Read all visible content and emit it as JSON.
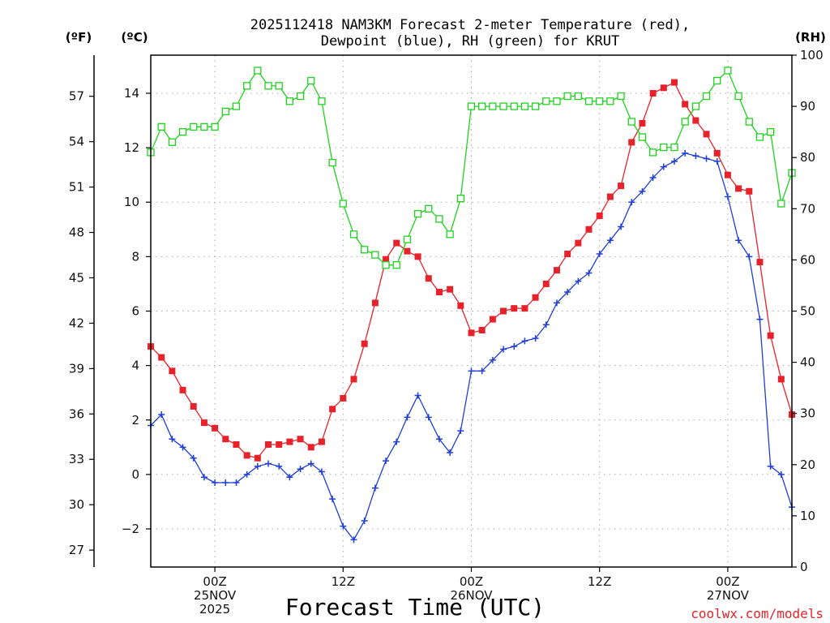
{
  "chart_data": {
    "type": "line",
    "title_line1": "2025112418 NAM3KM Forecast 2-meter Temperature (red),",
    "title_line2": "Dewpoint (blue), RH (green) for KRUT",
    "xlabel": "Forecast Time (UTC)",
    "credit": "coolwx.com/models",
    "left_units": [
      "(ºF)",
      "(ºC)"
    ],
    "right_unit": "(RH)",
    "x_unit": "forecast hours from 2025-11-24 18Z",
    "x_range": [
      0,
      60
    ],
    "celsius_range": [
      -3.4,
      15.4
    ],
    "celsius_ticks": [
      "−2",
      "0",
      "2",
      "4",
      "6",
      "8",
      "10",
      "12",
      "14"
    ],
    "celsius_tick_values": [
      -2,
      0,
      2,
      4,
      6,
      8,
      10,
      12,
      14
    ],
    "fahrenheit_ticks": [
      "27",
      "30",
      "33",
      "36",
      "39",
      "42",
      "45",
      "48",
      "51",
      "54",
      "57"
    ],
    "fahrenheit_tick_values": [
      27,
      30,
      33,
      36,
      39,
      42,
      45,
      48,
      51,
      54,
      57
    ],
    "rh_range": [
      0,
      100
    ],
    "rh_ticks": [
      "0",
      "10",
      "20",
      "30",
      "40",
      "50",
      "60",
      "70",
      "80",
      "90",
      "100"
    ],
    "rh_tick_values": [
      0,
      10,
      20,
      30,
      40,
      50,
      60,
      70,
      80,
      90,
      100
    ],
    "x_ticks": [
      {
        "hour": 6,
        "lines": [
          "00Z",
          "25NOV",
          "2025"
        ]
      },
      {
        "hour": 18,
        "lines": [
          "12Z"
        ]
      },
      {
        "hour": 30,
        "lines": [
          "00Z",
          "26NOV"
        ]
      },
      {
        "hour": 42,
        "lines": [
          "12Z"
        ]
      },
      {
        "hour": 54,
        "lines": [
          "00Z",
          "27NOV"
        ]
      }
    ],
    "grid": "dotted",
    "series": [
      {
        "name": "Temperature",
        "axis": "celsius",
        "color": "#e8222b",
        "marker": "filled-square",
        "hours": [
          0,
          1,
          2,
          3,
          4,
          5,
          6,
          7,
          8,
          9,
          10,
          11,
          12,
          13,
          14,
          15,
          16,
          17,
          18,
          19,
          20,
          21,
          22,
          23,
          24,
          25,
          26,
          27,
          28,
          29,
          30,
          31,
          32,
          33,
          34,
          35,
          36,
          37,
          38,
          39,
          40,
          41,
          42,
          43,
          44,
          45,
          46,
          47,
          48,
          49,
          50,
          51,
          52,
          53,
          54,
          55,
          56,
          57,
          58,
          59,
          60
        ],
        "values": [
          4.7,
          4.3,
          3.8,
          3.1,
          2.5,
          1.9,
          1.7,
          1.3,
          1.1,
          0.7,
          0.6,
          1.1,
          1.1,
          1.2,
          1.3,
          1.0,
          1.2,
          2.4,
          2.8,
          3.5,
          4.8,
          6.3,
          7.9,
          8.5,
          8.2,
          8.0,
          7.2,
          6.7,
          6.8,
          6.2,
          5.2,
          5.3,
          5.7,
          6.0,
          6.1,
          6.1,
          6.5,
          7.0,
          7.5,
          8.1,
          8.5,
          9.0,
          9.5,
          10.2,
          10.6,
          12.2,
          12.9,
          14.0,
          14.2,
          14.4,
          13.6,
          13.0,
          12.5,
          11.8,
          11.0,
          10.5,
          10.4,
          7.8,
          5.1,
          3.5,
          2.2
        ]
      },
      {
        "name": "Dewpoint",
        "axis": "celsius",
        "color": "#1f3fd6",
        "marker": "plus",
        "hours": [
          0,
          1,
          2,
          3,
          4,
          5,
          6,
          7,
          8,
          9,
          10,
          11,
          12,
          13,
          14,
          15,
          16,
          17,
          18,
          19,
          20,
          21,
          22,
          23,
          24,
          25,
          26,
          27,
          28,
          29,
          30,
          31,
          32,
          33,
          34,
          35,
          36,
          37,
          38,
          39,
          40,
          41,
          42,
          43,
          44,
          45,
          46,
          47,
          48,
          49,
          50,
          51,
          52,
          53,
          54,
          55,
          56,
          57,
          58,
          59,
          60
        ],
        "values": [
          1.8,
          2.2,
          1.3,
          1.0,
          0.6,
          -0.1,
          -0.3,
          -0.3,
          -0.3,
          0.0,
          0.3,
          0.4,
          0.3,
          -0.1,
          0.2,
          0.4,
          0.1,
          -0.9,
          -1.9,
          -2.4,
          -1.7,
          -0.5,
          0.5,
          1.2,
          2.1,
          2.9,
          2.1,
          1.3,
          0.8,
          1.6,
          3.8,
          3.8,
          4.2,
          4.6,
          4.7,
          4.9,
          5.0,
          5.5,
          6.3,
          6.7,
          7.1,
          7.4,
          8.1,
          8.6,
          9.1,
          10.0,
          10.4,
          10.9,
          11.3,
          11.5,
          11.8,
          11.7,
          11.6,
          11.5,
          10.2,
          8.6,
          8.0,
          5.7,
          0.3,
          0.0,
          -1.2
        ]
      },
      {
        "name": "Relative Humidity",
        "axis": "rh",
        "color": "#1ed21e",
        "marker": "open-square",
        "hours": [
          0,
          1,
          2,
          3,
          4,
          5,
          6,
          7,
          8,
          9,
          10,
          11,
          12,
          13,
          14,
          15,
          16,
          17,
          18,
          19,
          20,
          21,
          22,
          23,
          24,
          25,
          26,
          27,
          28,
          29,
          30,
          31,
          32,
          33,
          34,
          35,
          36,
          37,
          38,
          39,
          40,
          41,
          42,
          43,
          44,
          45,
          46,
          47,
          48,
          49,
          50,
          51,
          52,
          53,
          54,
          55,
          56,
          57,
          58,
          59,
          60
        ],
        "values": [
          81,
          86,
          83,
          85,
          86,
          86,
          86,
          89,
          90,
          94,
          97,
          94,
          94,
          91,
          92,
          95,
          91,
          79,
          71,
          65,
          62,
          61,
          59,
          59,
          64,
          69,
          70,
          68,
          65,
          72,
          90,
          90,
          90,
          90,
          90,
          90,
          90,
          91,
          91,
          92,
          92,
          91,
          91,
          91,
          92,
          87,
          84,
          81,
          82,
          82,
          87,
          90,
          92,
          95,
          97,
          92,
          87,
          84,
          85,
          71,
          77
        ]
      }
    ]
  }
}
